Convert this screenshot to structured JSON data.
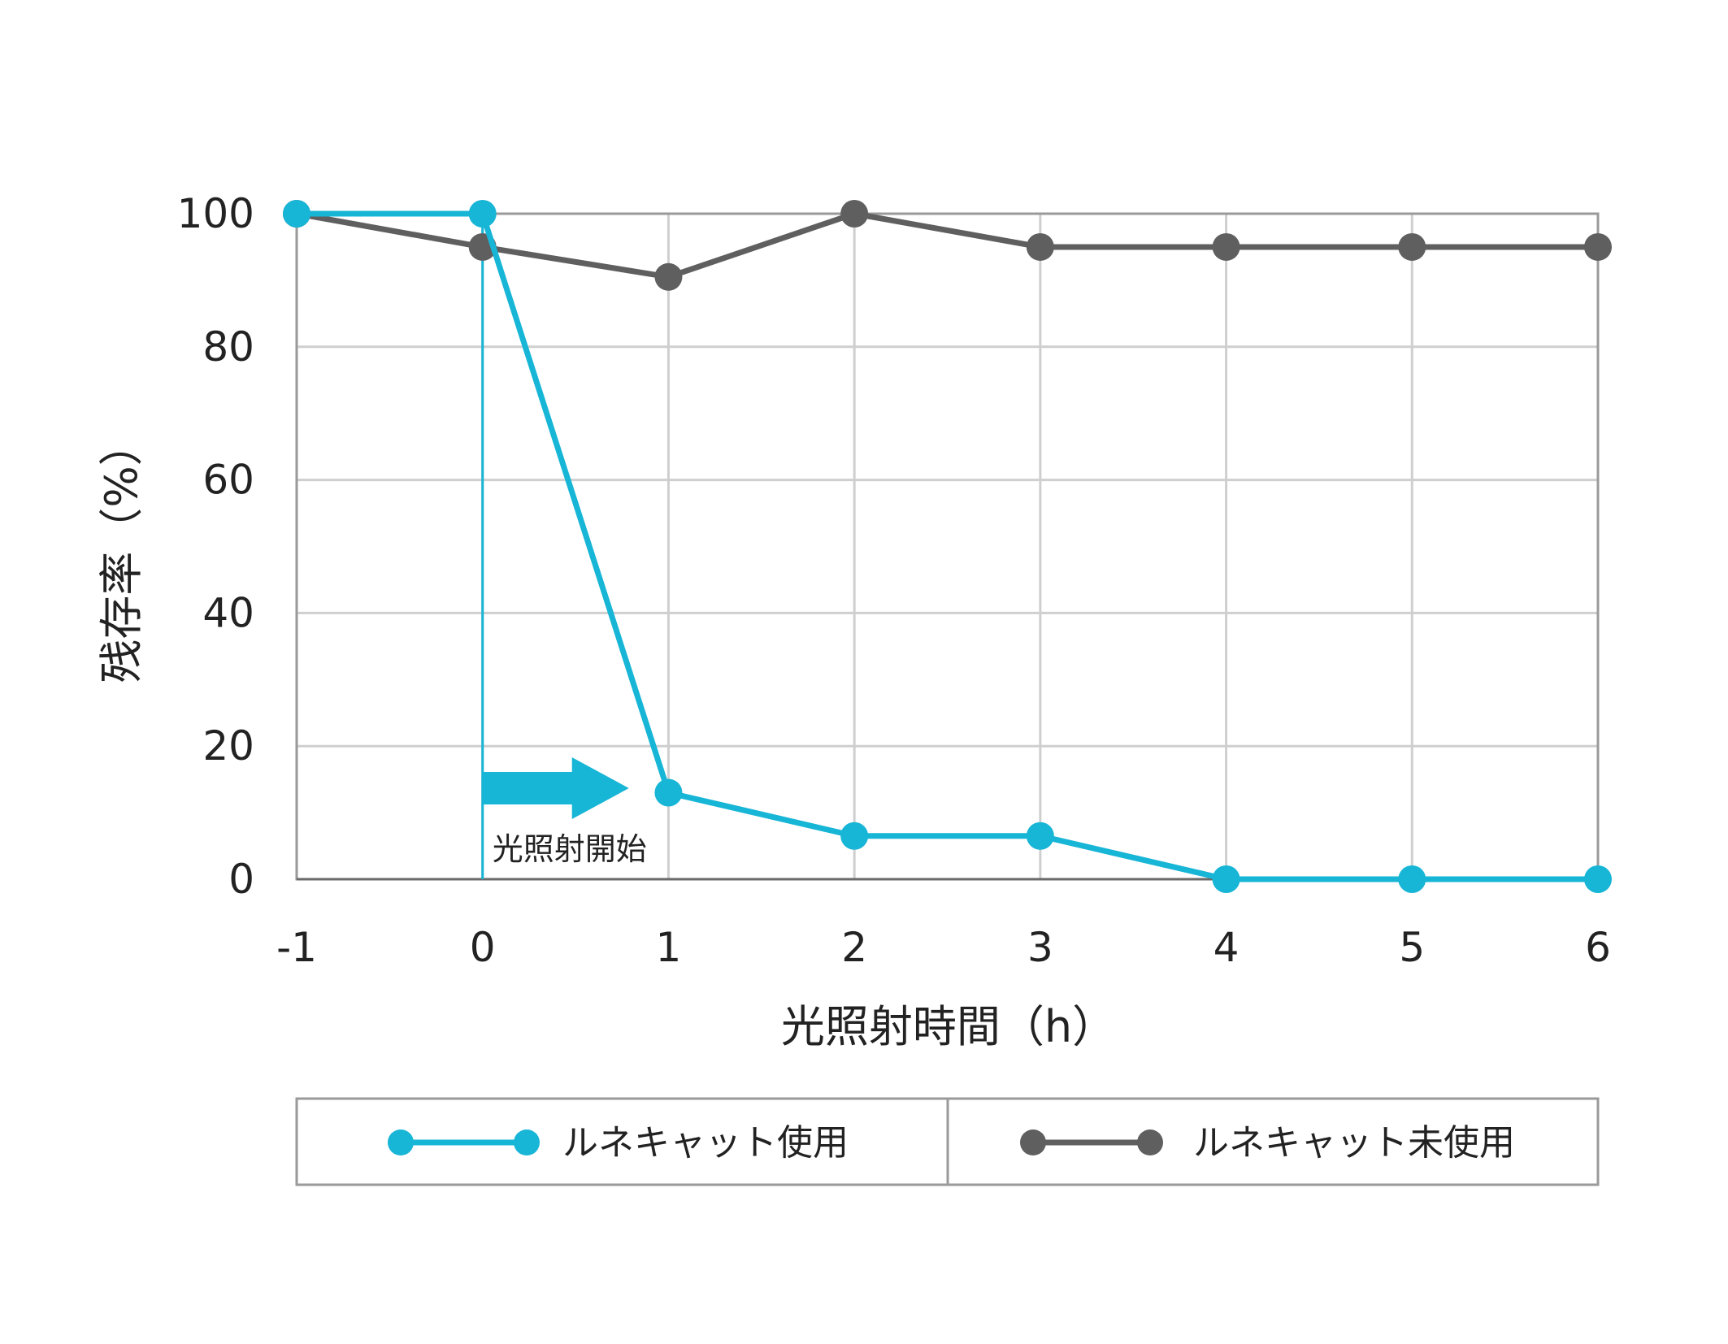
{
  "chart_data": {
    "type": "line",
    "x": [
      -1,
      0,
      1,
      2,
      3,
      4,
      5,
      6
    ],
    "xlabel": "光照射時間（h）",
    "ylabel": "残存率（%）",
    "xlim": [
      -1,
      6
    ],
    "ylim": [
      0,
      100
    ],
    "yticks": [
      0,
      20,
      40,
      60,
      80,
      100
    ],
    "xtick_labels": [
      "-1",
      "0",
      "1",
      "2",
      "3",
      "4",
      "5",
      "6"
    ],
    "ytick_labels": [
      "0",
      "20",
      "40",
      "60",
      "80",
      "100"
    ],
    "grid": true,
    "legend_position": "bottom",
    "series": [
      {
        "name": "ルネキャット使用",
        "color": "#17b5d6",
        "values": [
          100,
          100,
          13,
          6.5,
          6.5,
          0,
          0,
          0
        ]
      },
      {
        "name": "ルネキャット未使用",
        "color": "#5f5f5f",
        "values": [
          100,
          95,
          90.5,
          100,
          95,
          95,
          95,
          95
        ]
      }
    ],
    "annotation": {
      "text": "光照射開始",
      "x": 0
    }
  }
}
